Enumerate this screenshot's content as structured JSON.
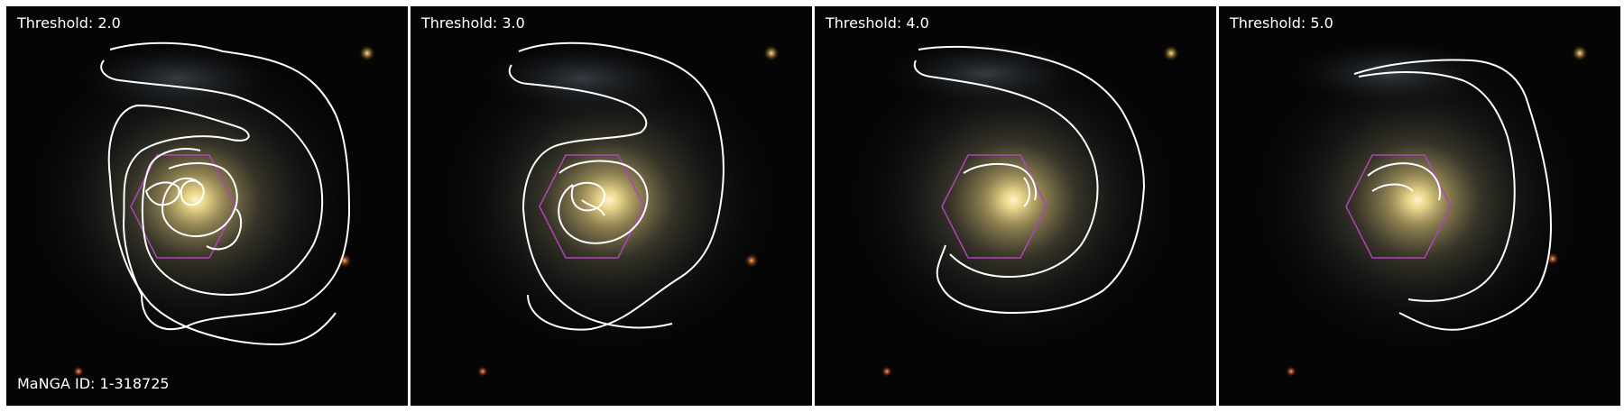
{
  "panels": [
    {
      "threshold_label": "Threshold: 2.0"
    },
    {
      "threshold_label": "Threshold: 3.0"
    },
    {
      "threshold_label": "Threshold: 4.0"
    },
    {
      "threshold_label": "Threshold: 5.0"
    }
  ],
  "manga_id_label": "MaNGA ID: 1-318725",
  "colors": {
    "contour": "#ffffff",
    "hexagon": "#b044b8",
    "background": "#050505"
  }
}
